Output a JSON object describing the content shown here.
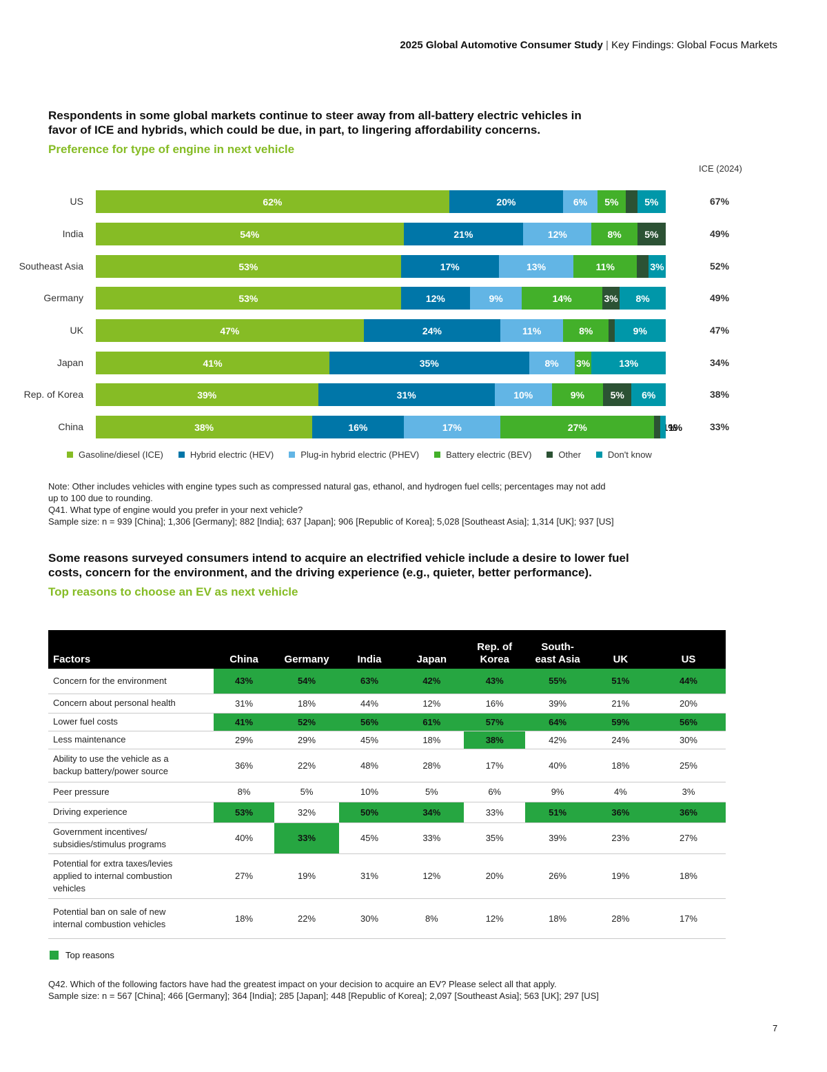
{
  "header": {
    "bold": "2025 Global Automotive Consumer Study",
    "separator": "|",
    "rest": "Key Findings: Global Focus Markets"
  },
  "section1": {
    "headline_line1": "Respondents in some global markets continue to steer away from all-battery electric vehicles in",
    "headline_line2": "favor of ICE and hybrids, which could be due, in part, to lingering affordability concerns.",
    "subhead": "Preference for type of engine in next vehicle"
  },
  "chart_data": {
    "type": "bar",
    "orientation": "horizontal",
    "stacked": true,
    "title": "Preference for type of engine in next vehicle",
    "categories": [
      "US",
      "India",
      "Southeast Asia",
      "Germany",
      "UK",
      "Japan",
      "Rep. of Korea",
      "China"
    ],
    "series": [
      {
        "name": "Gasoline/diesel (ICE)",
        "color": "#86bc25",
        "values": [
          62,
          54,
          53,
          53,
          47,
          41,
          39,
          38
        ]
      },
      {
        "name": "Hybrid electric (HEV)",
        "color": "#0076a8",
        "values": [
          20,
          21,
          17,
          12,
          24,
          35,
          31,
          16
        ]
      },
      {
        "name": "Plug-in hybrid electric (PHEV)",
        "color": "#62b5e5",
        "values": [
          6,
          12,
          13,
          9,
          11,
          8,
          10,
          17
        ]
      },
      {
        "name": "Battery electric (BEV)",
        "color": "#43b02a",
        "values": [
          5,
          8,
          11,
          14,
          8,
          3,
          9,
          27
        ]
      },
      {
        "name": "Other",
        "color": "#2c5234",
        "values": [
          2,
          5,
          2,
          3,
          1,
          0,
          5,
          1
        ]
      },
      {
        "name": "Don't know",
        "color": "#0097a9",
        "values": [
          5,
          0,
          3,
          8,
          9,
          13,
          6,
          1
        ]
      }
    ],
    "side_column": {
      "label": "ICE (2024)",
      "values": [
        "67%",
        "49%",
        "52%",
        "49%",
        "47%",
        "34%",
        "38%",
        "33%"
      ]
    }
  },
  "notes1": {
    "line1": "Note: Other includes vehicles with engine types such as compressed natural gas, ethanol, and hydrogen fuel cells; percentages may not add",
    "line2": "up to 100 due to rounding.",
    "line3": "Q41. What type of engine would you prefer in your next vehicle?",
    "line4": "Sample size: n = 939 [China]; 1,306 [Germany]; 882 [India]; 637 [Japan]; 906 [Republic of Korea]; 5,028 [Southeast Asia]; 1,314 [UK]; 937 [US]"
  },
  "section2": {
    "headline_line1": "Some reasons surveyed consumers intend to acquire an electrified vehicle include a desire to lower fuel",
    "headline_line2": "costs, concern for the environment, and the driving experience (e.g., quieter, better performance).",
    "subhead": "Top reasons to choose an EV as next vehicle"
  },
  "table": {
    "headers": [
      "Factors",
      "China",
      "Germany",
      "India",
      "Japan",
      "Rep. of\nKorea",
      "South-\neast Asia",
      "UK",
      "US"
    ],
    "rows": [
      {
        "factor": "Concern for the environment",
        "values": [
          "43%",
          "54%",
          "63%",
          "42%",
          "43%",
          "55%",
          "51%",
          "44%"
        ],
        "top": [
          1,
          1,
          1,
          1,
          1,
          1,
          1,
          1
        ]
      },
      {
        "factor": "Concern about personal health",
        "values": [
          "31%",
          "18%",
          "44%",
          "12%",
          "16%",
          "39%",
          "21%",
          "20%"
        ],
        "top": [
          0,
          0,
          0,
          0,
          0,
          0,
          0,
          0
        ]
      },
      {
        "factor": "Lower fuel costs",
        "values": [
          "41%",
          "52%",
          "56%",
          "61%",
          "57%",
          "64%",
          "59%",
          "56%"
        ],
        "top": [
          1,
          1,
          1,
          1,
          1,
          1,
          1,
          1
        ]
      },
      {
        "factor": "Less maintenance",
        "values": [
          "29%",
          "29%",
          "45%",
          "18%",
          "38%",
          "42%",
          "24%",
          "30%"
        ],
        "top": [
          0,
          0,
          0,
          0,
          1,
          0,
          0,
          0
        ]
      },
      {
        "factor": "Ability to use the vehicle as a\nbackup battery/power source",
        "values": [
          "36%",
          "22%",
          "48%",
          "28%",
          "17%",
          "40%",
          "18%",
          "25%"
        ],
        "top": [
          0,
          0,
          0,
          0,
          0,
          0,
          0,
          0
        ]
      },
      {
        "factor": "Peer pressure",
        "values": [
          "8%",
          "5%",
          "10%",
          "5%",
          "6%",
          "9%",
          "4%",
          "3%"
        ],
        "top": [
          0,
          0,
          0,
          0,
          0,
          0,
          0,
          0
        ]
      },
      {
        "factor": "Driving experience",
        "values": [
          "53%",
          "32%",
          "50%",
          "34%",
          "33%",
          "51%",
          "36%",
          "36%"
        ],
        "top": [
          1,
          0,
          1,
          1,
          0,
          1,
          1,
          1
        ]
      },
      {
        "factor": "Government incentives/\nsubsidies/stimulus programs",
        "values": [
          "40%",
          "33%",
          "45%",
          "33%",
          "35%",
          "39%",
          "23%",
          "27%"
        ],
        "top": [
          0,
          1,
          0,
          0,
          0,
          0,
          0,
          0
        ]
      },
      {
        "factor": "Potential for extra taxes/levies\napplied to internal combustion\nvehicles",
        "values": [
          "27%",
          "19%",
          "31%",
          "12%",
          "20%",
          "26%",
          "19%",
          "18%"
        ],
        "top": [
          0,
          0,
          0,
          0,
          0,
          0,
          0,
          0
        ]
      },
      {
        "factor": "Potential ban on sale of new\ninternal combustion vehicles",
        "values": [
          "18%",
          "22%",
          "30%",
          "8%",
          "12%",
          "18%",
          "28%",
          "17%"
        ],
        "top": [
          0,
          0,
          0,
          0,
          0,
          0,
          0,
          0
        ]
      }
    ],
    "key_label": "Top reasons"
  },
  "notes2": {
    "line1": "Q42. Which of the following factors have had the greatest impact on your decision to acquire an EV? Please select all that apply.",
    "line2": "Sample size: n = 567 [China]; 466 [Germany]; 364 [India]; 285 [Japan]; 448 [Republic of Korea]; 2,097 [Southeast Asia]; 563 [UK]; 297 [US]"
  },
  "page_number": "7",
  "colors": {
    "accent_green": "#86bc25",
    "top_reason_green": "#26a641"
  }
}
